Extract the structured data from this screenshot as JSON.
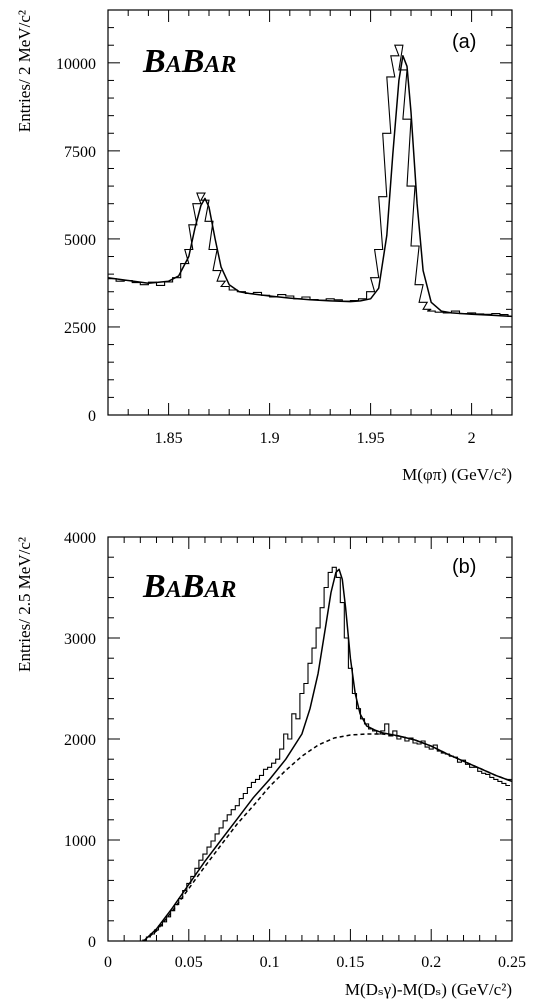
{
  "chart_data": [
    {
      "type": "line",
      "panel_label": "(a)",
      "logo": "BABAR",
      "ylabel": "Entries/ 2 MeV/c²",
      "xlabel": "M(φπ) (GeV/c²)",
      "xlim": [
        1.82,
        2.02
      ],
      "ylim": [
        0,
        11500
      ],
      "x_ticks": [
        1.85,
        1.9,
        1.95,
        2.0
      ],
      "x_tick_labels": [
        "1.85",
        "1.9",
        "1.95",
        "2"
      ],
      "y_ticks": [
        0,
        2500,
        5000,
        7500,
        10000
      ],
      "y_tick_labels": [
        "0",
        "2500",
        "5000",
        "7500",
        "10000"
      ],
      "grid": false,
      "series": [
        {
          "style": "histogram",
          "x": [
            1.822,
            1.826,
            1.83,
            1.834,
            1.838,
            1.842,
            1.846,
            1.85,
            1.854,
            1.858,
            1.86,
            1.862,
            1.864,
            1.866,
            1.868,
            1.87,
            1.872,
            1.874,
            1.876,
            1.878,
            1.882,
            1.886,
            1.89,
            1.894,
            1.898,
            1.902,
            1.906,
            1.91,
            1.914,
            1.918,
            1.922,
            1.926,
            1.93,
            1.934,
            1.938,
            1.942,
            1.946,
            1.95,
            1.952,
            1.954,
            1.956,
            1.958,
            1.96,
            1.962,
            1.964,
            1.966,
            1.968,
            1.97,
            1.972,
            1.974,
            1.976,
            1.978,
            1.98,
            1.984,
            1.988,
            1.992,
            1.996,
            2.0,
            2.004,
            2.008,
            2.012,
            2.016,
            2.02
          ],
          "y": [
            3870,
            3800,
            3820,
            3760,
            3700,
            3770,
            3680,
            3780,
            3900,
            4300,
            4700,
            5400,
            6000,
            6300,
            6100,
            5500,
            4700,
            4100,
            3800,
            3650,
            3550,
            3500,
            3450,
            3480,
            3400,
            3350,
            3420,
            3380,
            3300,
            3350,
            3280,
            3260,
            3300,
            3270,
            3230,
            3250,
            3300,
            3500,
            3900,
            4700,
            6200,
            8000,
            9600,
            10200,
            10500,
            9800,
            8400,
            6500,
            4800,
            3700,
            3200,
            3000,
            2950,
            2920,
            2900,
            2950,
            2880,
            2900,
            2870,
            2860,
            2880,
            2850,
            2800
          ]
        },
        {
          "style": "fit",
          "x": [
            1.82,
            1.83,
            1.84,
            1.85,
            1.855,
            1.86,
            1.863,
            1.866,
            1.868,
            1.87,
            1.873,
            1.876,
            1.88,
            1.885,
            1.89,
            1.9,
            1.91,
            1.92,
            1.93,
            1.94,
            1.945,
            1.95,
            1.954,
            1.958,
            1.961,
            1.964,
            1.966,
            1.968,
            1.97,
            1.973,
            1.976,
            1.98,
            1.985,
            1.99,
            2.0,
            2.01,
            2.02
          ],
          "y": [
            3900,
            3820,
            3740,
            3800,
            3950,
            4500,
            5300,
            5950,
            6150,
            5900,
            5000,
            4200,
            3700,
            3500,
            3450,
            3380,
            3320,
            3270,
            3240,
            3220,
            3240,
            3300,
            3600,
            5100,
            7400,
            9500,
            10200,
            9900,
            8600,
            6000,
            4100,
            3200,
            2950,
            2900,
            2860,
            2830,
            2800
          ]
        }
      ]
    },
    {
      "type": "line",
      "panel_label": "(b)",
      "logo": "BABAR",
      "ylabel": "Entries/ 2.5 MeV/c²",
      "xlabel": "M(Dₛγ)-M(Dₛ) (GeV/c²)",
      "xlim": [
        0,
        0.25
      ],
      "ylim": [
        0,
        4000
      ],
      "x_ticks": [
        0,
        0.05,
        0.1,
        0.15,
        0.2,
        0.25
      ],
      "x_tick_labels": [
        "0",
        "0.05",
        "0.1",
        "0.15",
        "0.2",
        "0.25"
      ],
      "y_ticks": [
        0,
        1000,
        2000,
        3000,
        4000
      ],
      "y_tick_labels": [
        "0",
        "1000",
        "2000",
        "3000",
        "4000"
      ],
      "grid": false,
      "series": [
        {
          "style": "histogram",
          "x": [
            0.0225,
            0.025,
            0.0275,
            0.03,
            0.0325,
            0.035,
            0.0375,
            0.04,
            0.0425,
            0.045,
            0.0475,
            0.05,
            0.0525,
            0.055,
            0.0575,
            0.06,
            0.0625,
            0.065,
            0.0675,
            0.07,
            0.0725,
            0.075,
            0.0775,
            0.08,
            0.0825,
            0.085,
            0.0875,
            0.09,
            0.0925,
            0.095,
            0.0975,
            0.1,
            0.1025,
            0.105,
            0.1075,
            0.11,
            0.1125,
            0.115,
            0.1175,
            0.12,
            0.1225,
            0.125,
            0.1275,
            0.13,
            0.1325,
            0.135,
            0.1375,
            0.14,
            0.1425,
            0.145,
            0.1475,
            0.15,
            0.1525,
            0.155,
            0.1575,
            0.16,
            0.1625,
            0.165,
            0.1675,
            0.17,
            0.1725,
            0.175,
            0.1775,
            0.18,
            0.1825,
            0.185,
            0.1875,
            0.19,
            0.1925,
            0.195,
            0.1975,
            0.2,
            0.2025,
            0.205,
            0.2075,
            0.21,
            0.2125,
            0.215,
            0.2175,
            0.22,
            0.2225,
            0.225,
            0.2275,
            0.23,
            0.2325,
            0.235,
            0.2375,
            0.24,
            0.2425,
            0.245,
            0.2475
          ],
          "y": [
            10,
            40,
            70,
            110,
            150,
            190,
            240,
            300,
            360,
            420,
            500,
            570,
            640,
            720,
            800,
            860,
            930,
            990,
            1060,
            1120,
            1190,
            1250,
            1300,
            1340,
            1410,
            1460,
            1520,
            1570,
            1600,
            1640,
            1700,
            1720,
            1760,
            1800,
            1900,
            2050,
            2000,
            2250,
            2200,
            2450,
            2550,
            2750,
            2900,
            3100,
            3300,
            3500,
            3650,
            3700,
            3600,
            3350,
            3000,
            2700,
            2450,
            2300,
            2200,
            2150,
            2100,
            2080,
            2050,
            2080,
            2150,
            2030,
            2080,
            2000,
            2020,
            1980,
            2010,
            1960,
            1950,
            1980,
            1920,
            1900,
            1940,
            1880,
            1860,
            1850,
            1830,
            1820,
            1770,
            1790,
            1750,
            1720,
            1720,
            1680,
            1660,
            1650,
            1620,
            1600,
            1580,
            1560,
            1540
          ]
        },
        {
          "style": "fit",
          "x": [
            0.022,
            0.03,
            0.04,
            0.05,
            0.06,
            0.07,
            0.08,
            0.09,
            0.1,
            0.11,
            0.12,
            0.125,
            0.13,
            0.135,
            0.138,
            0.141,
            0.143,
            0.145,
            0.147,
            0.15,
            0.153,
            0.156,
            0.16,
            0.165,
            0.17,
            0.18,
            0.19,
            0.2,
            0.21,
            0.22,
            0.23,
            0.24,
            0.25
          ],
          "y": [
            0,
            120,
            330,
            560,
            790,
            1000,
            1210,
            1420,
            1600,
            1800,
            2050,
            2300,
            2650,
            3150,
            3450,
            3650,
            3680,
            3580,
            3300,
            2800,
            2450,
            2250,
            2130,
            2090,
            2060,
            2030,
            1990,
            1930,
            1850,
            1780,
            1710,
            1640,
            1580
          ]
        },
        {
          "style": "dashed",
          "x": [
            0.022,
            0.03,
            0.04,
            0.05,
            0.06,
            0.07,
            0.08,
            0.09,
            0.1,
            0.11,
            0.12,
            0.13,
            0.14,
            0.15,
            0.16,
            0.17,
            0.18,
            0.19,
            0.2,
            0.21,
            0.22,
            0.23,
            0.24,
            0.25
          ],
          "y": [
            0,
            100,
            300,
            520,
            740,
            950,
            1160,
            1340,
            1530,
            1690,
            1830,
            1940,
            2010,
            2040,
            2050,
            2050,
            2030,
            1990,
            1930,
            1850,
            1780,
            1710,
            1640,
            1580
          ]
        }
      ]
    }
  ]
}
